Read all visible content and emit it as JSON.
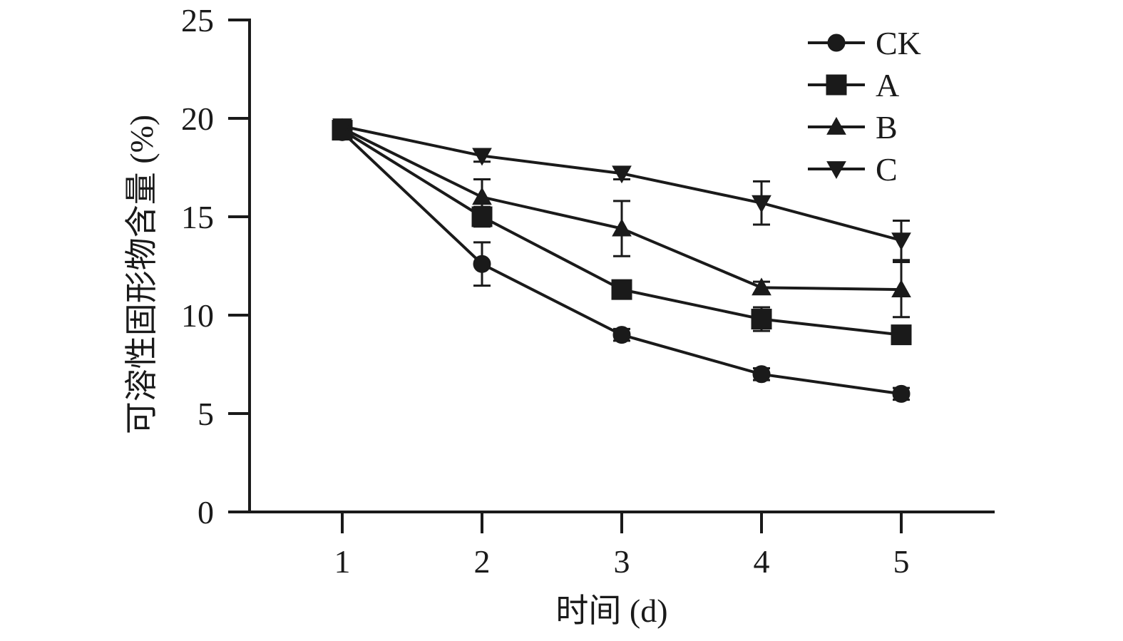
{
  "chart_data": {
    "type": "line",
    "title": "",
    "xlabel": "时间 (d)",
    "ylabel": "可溶性固形物含量 (%)",
    "x": [
      1,
      2,
      3,
      4,
      5
    ],
    "xticks": [
      "1",
      "2",
      "3",
      "4",
      "5"
    ],
    "ylim": [
      0,
      25
    ],
    "yticks": [
      "0",
      "5",
      "10",
      "15",
      "20",
      "25"
    ],
    "ytick_values": [
      0,
      5,
      10,
      15,
      20,
      25
    ],
    "grid": false,
    "legend_position": "top-right",
    "color": "#1a1a1a",
    "series": [
      {
        "name": "CK",
        "marker": "circle",
        "values": [
          19.3,
          12.6,
          9.0,
          7.0,
          6.0
        ],
        "errors": [
          0.3,
          1.1,
          0.3,
          0.3,
          0.3
        ]
      },
      {
        "name": "A",
        "marker": "square",
        "values": [
          19.4,
          15.0,
          11.3,
          9.8,
          9.0
        ],
        "errors": [
          0.3,
          0.5,
          0.3,
          0.6,
          0.4
        ]
      },
      {
        "name": "B",
        "marker": "triangle-up",
        "values": [
          19.5,
          16.0,
          14.4,
          11.4,
          11.3
        ],
        "errors": [
          0.3,
          0.9,
          1.4,
          0.3,
          1.4
        ]
      },
      {
        "name": "C",
        "marker": "triangle-down",
        "values": [
          19.6,
          18.1,
          17.2,
          15.7,
          13.8
        ],
        "errors": [
          0.3,
          0.3,
          0.3,
          1.1,
          1.0
        ]
      }
    ]
  }
}
